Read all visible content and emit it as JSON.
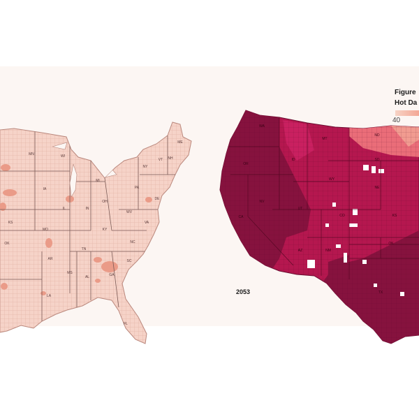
{
  "legend": {
    "title_line1": "Figure",
    "title_line2": "Hot Da",
    "tick_label": "40",
    "color_low": "#f7d3c5",
    "color_high": "#f3a795"
  },
  "right_map": {
    "year_label": "2053",
    "colors": {
      "dark": "#86123e",
      "medium": "#b5174f",
      "light": "#e9528a"
    }
  },
  "left_map": {
    "colors": {
      "base": "#f6d3c8",
      "hot": "#ea9b88"
    }
  },
  "left_state_labels": [
    {
      "code": "ME"
    },
    {
      "code": "VT"
    },
    {
      "code": "NH"
    },
    {
      "code": "NY"
    },
    {
      "code": "PA"
    },
    {
      "code": "OH"
    },
    {
      "code": "IN"
    },
    {
      "code": "IL"
    },
    {
      "code": "IA"
    },
    {
      "code": "MN"
    },
    {
      "code": "WI"
    },
    {
      "code": "MI"
    },
    {
      "code": "MO"
    },
    {
      "code": "KY"
    },
    {
      "code": "WV"
    },
    {
      "code": "VA"
    },
    {
      "code": "TN"
    },
    {
      "code": "NC"
    },
    {
      "code": "SC"
    },
    {
      "code": "GA"
    },
    {
      "code": "AL"
    },
    {
      "code": "MS"
    },
    {
      "code": "AR"
    },
    {
      "code": "LA"
    },
    {
      "code": "OK"
    },
    {
      "code": "KS"
    },
    {
      "code": "FL"
    },
    {
      "code": "DE"
    }
  ],
  "right_state_labels": [
    {
      "code": "WA"
    },
    {
      "code": "OR"
    },
    {
      "code": "CA"
    },
    {
      "code": "NV"
    },
    {
      "code": "ID"
    },
    {
      "code": "MT"
    },
    {
      "code": "WY"
    },
    {
      "code": "UT"
    },
    {
      "code": "AZ"
    },
    {
      "code": "CO"
    },
    {
      "code": "NM"
    },
    {
      "code": "ND"
    },
    {
      "code": "SD"
    },
    {
      "code": "NE"
    },
    {
      "code": "KS"
    },
    {
      "code": "OK"
    },
    {
      "code": "TX"
    }
  ]
}
